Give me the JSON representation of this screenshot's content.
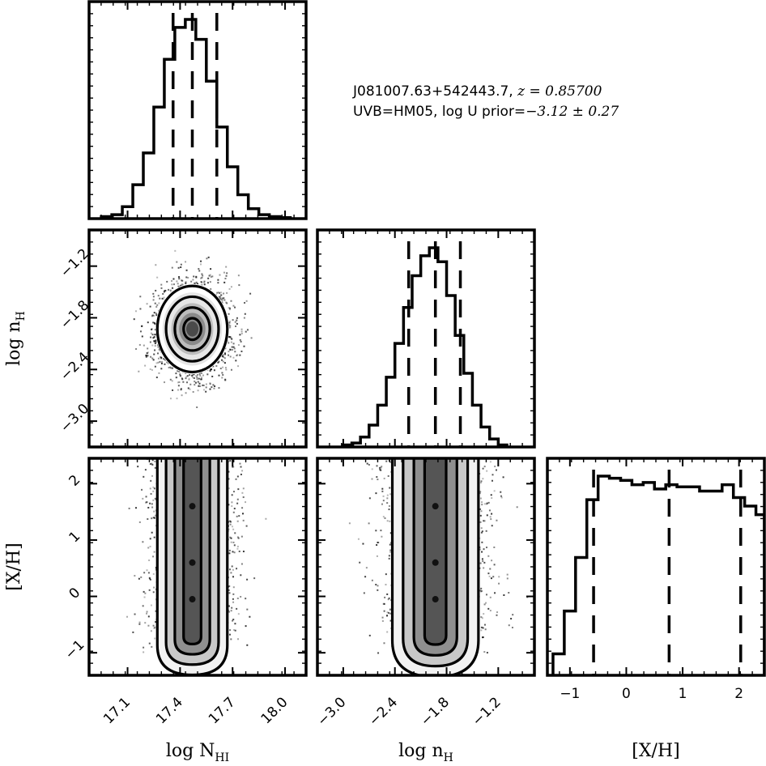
{
  "title": {
    "object_line": "J081007.63+542443.7, ",
    "redshift": "z = 0.85700",
    "uvb_line": "UVB=HM05, log U prior=",
    "prior_value": "−3.12 ± 0.27"
  },
  "chart_data": {
    "type": "corner",
    "parameters": [
      "log N_HI",
      "log n_H",
      "[X/H]"
    ],
    "axis_labels": {
      "log_NHI": "log N",
      "log_NHI_sub": "HI",
      "log_nH": "log n",
      "log_nH_sub": "H",
      "XH": "[X/H]"
    },
    "ranges": {
      "log_NHI": [
        16.88,
        18.12
      ],
      "log_nH": [
        -3.3,
        -0.78
      ],
      "XH": [
        -1.4,
        2.45
      ]
    },
    "ticks": {
      "log_NHI": [
        17.1,
        17.4,
        17.7,
        18.0
      ],
      "log_nH": [
        -3.0,
        -2.4,
        -1.8,
        -1.2
      ],
      "XH": [
        -1,
        0,
        1,
        2
      ]
    },
    "tick_labels": {
      "log_NHI": [
        "17.1",
        "17.4",
        "17.7",
        "18.0"
      ],
      "log_nH": [
        "−3.0",
        "−2.4",
        "−1.8",
        "−1.2"
      ],
      "XH": [
        "−1",
        "0",
        "1",
        "2"
      ]
    },
    "marginals": [
      {
        "parameter": "log_NHI",
        "bin_edges": [
          16.95,
          17.01,
          17.07,
          17.13,
          17.19,
          17.25,
          17.31,
          17.37,
          17.43,
          17.49,
          17.55,
          17.61,
          17.67,
          17.73,
          17.79,
          17.85,
          17.91,
          17.97,
          18.03
        ],
        "counts": [
          0.01,
          0.02,
          0.06,
          0.17,
          0.33,
          0.56,
          0.8,
          0.96,
          1.0,
          0.9,
          0.69,
          0.46,
          0.26,
          0.12,
          0.05,
          0.02,
          0.01,
          0.005
        ],
        "quantiles": [
          17.36,
          17.47,
          17.61
        ]
      },
      {
        "parameter": "log_nH",
        "bin_edges": [
          -3.0,
          -2.9,
          -2.8,
          -2.7,
          -2.6,
          -2.5,
          -2.4,
          -2.3,
          -2.2,
          -2.1,
          -2.0,
          -1.9,
          -1.8,
          -1.7,
          -1.6,
          -1.5,
          -1.4,
          -1.3,
          -1.2,
          -1.1
        ],
        "counts": [
          0.01,
          0.02,
          0.05,
          0.11,
          0.21,
          0.35,
          0.52,
          0.7,
          0.86,
          0.96,
          1.0,
          0.93,
          0.76,
          0.56,
          0.37,
          0.21,
          0.1,
          0.04,
          0.01
        ],
        "quantiles": [
          -2.24,
          -1.93,
          -1.64
        ]
      },
      {
        "parameter": "XH",
        "bin_edges": [
          -1.3,
          -1.1,
          -0.9,
          -0.7,
          -0.5,
          -0.3,
          -0.1,
          0.1,
          0.3,
          0.5,
          0.7,
          0.9,
          1.1,
          1.3,
          1.5,
          1.7,
          1.9,
          2.1,
          2.3,
          2.45
        ],
        "counts": [
          0.1,
          0.3,
          0.55,
          0.82,
          0.93,
          0.92,
          0.91,
          0.89,
          0.9,
          0.87,
          0.89,
          0.88,
          0.88,
          0.86,
          0.86,
          0.89,
          0.83,
          0.79,
          0.75
        ],
        "quantiles": [
          -0.58,
          0.76,
          2.03
        ]
      }
    ],
    "joint": {
      "log_nH_vs_log_NHI": {
        "center": [
          17.47,
          -1.93
        ],
        "sigma": [
          0.1,
          0.25
        ],
        "contour_levels_sigma": [
          0.5,
          1.0,
          1.5,
          2.0
        ]
      },
      "XH_vs_log_NHI": {
        "x_center": 17.47,
        "x_sigma": 0.1,
        "y_range": [
          -1.0,
          2.45
        ]
      },
      "XH_vs_log_nH": {
        "x_center": -1.93,
        "x_sigma": 0.25,
        "y_range": [
          -1.0,
          2.45
        ]
      }
    }
  }
}
